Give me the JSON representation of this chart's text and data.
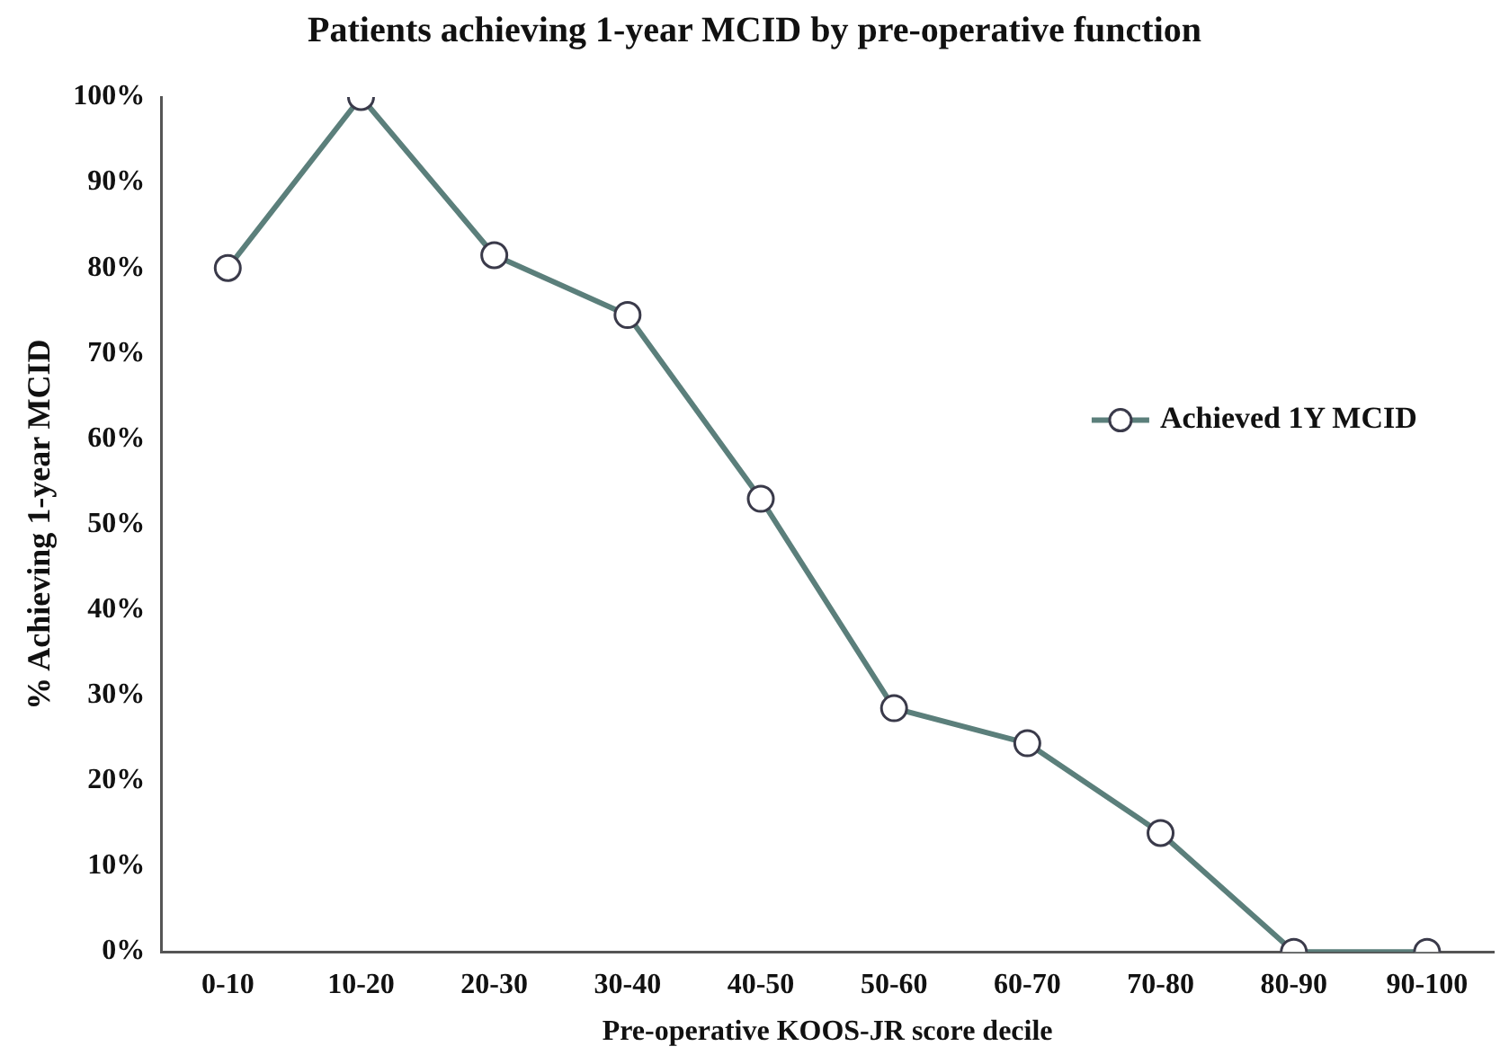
{
  "chart_data": {
    "type": "line",
    "title": "Patients achieving 1-year MCID by pre-operative function",
    "xlabel": "Pre-operative KOOS-JR score decile",
    "ylabel": "% Achieving 1-year MCID",
    "categories": [
      "0-10",
      "10-20",
      "20-30",
      "30-40",
      "40-50",
      "50-60",
      "60-70",
      "70-80",
      "80-90",
      "90-100"
    ],
    "series": [
      {
        "name": "Achieved 1Y MCID",
        "color": "#5b7f7b",
        "values": [
          80,
          100,
          81.5,
          74.5,
          53,
          28.5,
          24.4,
          13.9,
          0,
          0
        ]
      }
    ],
    "ylim": [
      0,
      100
    ],
    "yticks": [
      {
        "value": 0,
        "label": "0%"
      },
      {
        "value": 10,
        "label": "10%"
      },
      {
        "value": 20,
        "label": "20%"
      },
      {
        "value": 30,
        "label": "30%"
      },
      {
        "value": 40,
        "label": "40%"
      },
      {
        "value": 50,
        "label": "50%"
      },
      {
        "value": 60,
        "label": "60%"
      },
      {
        "value": 70,
        "label": "70%"
      },
      {
        "value": 80,
        "label": "80%"
      },
      {
        "value": 90,
        "label": "90%"
      },
      {
        "value": 100,
        "label": "100%"
      }
    ],
    "grid": false,
    "legend": "right",
    "marker": "circle",
    "line_style": "solid"
  }
}
